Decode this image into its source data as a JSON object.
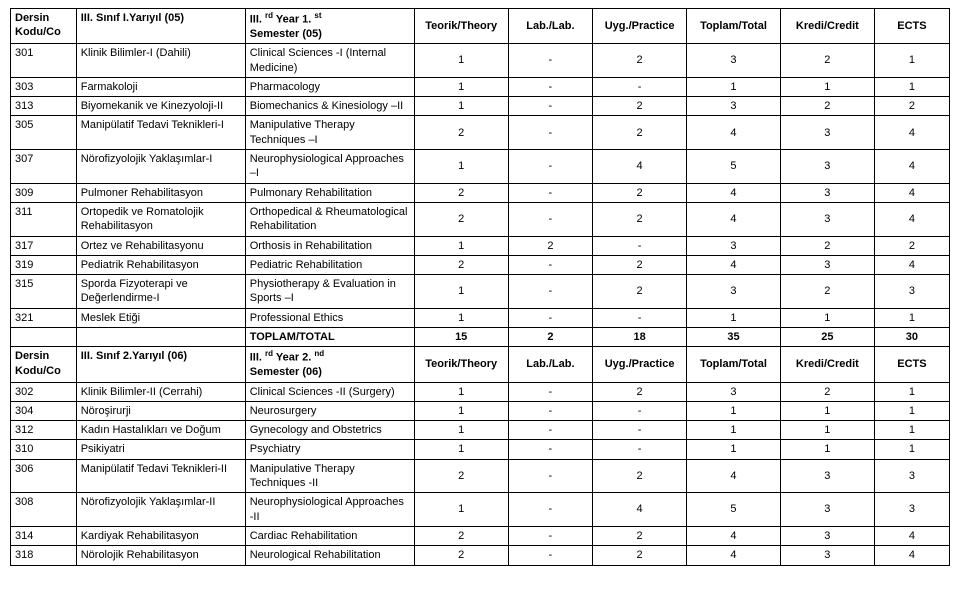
{
  "header1": {
    "col1a": "Dersin",
    "col1b": "Kodu/Co",
    "col2": "III. Sınıf I.Yarıyıl (05)",
    "col3a": "III. ",
    "col3sup": "rd",
    "col3b": " Year 1. ",
    "col3sup2": "st",
    "col3c": "Semester (05)",
    "col4": "Teorik/Theory",
    "col5": "Lab./Lab.",
    "col6": "Uyg./Practice",
    "col7": "Toplam/Total",
    "col8": "Kredi/Credit",
    "col9": "ECTS"
  },
  "rows1": [
    {
      "code": "301",
      "tr": "Klinik Bilimler-I (Dahili)",
      "en": "Clinical Sciences -I (Internal Medicine)",
      "t": "1",
      "l": "-",
      "p": "2",
      "tot": "3",
      "cr": "2",
      "e": "1"
    },
    {
      "code": "303",
      "tr": "Farmakoloji",
      "en": "Pharmacology",
      "t": "1",
      "l": "-",
      "p": "-",
      "tot": "1",
      "cr": "1",
      "e": "1"
    },
    {
      "code": "313",
      "tr": "Biyomekanik ve Kinezyoloji-II",
      "en": "Biomechanics & Kinesiology –II",
      "t": "1",
      "l": "-",
      "p": "2",
      "tot": "3",
      "cr": "2",
      "e": "2"
    },
    {
      "code": "305",
      "tr": "Manipülatif Tedavi Teknikleri-I",
      "en": "Manipulative Therapy Techniques –I",
      "t": "2",
      "l": "-",
      "p": "2",
      "tot": "4",
      "cr": "3",
      "e": "4"
    },
    {
      "code": "307",
      "tr": "Nörofizyolojik Yaklaşımlar-I",
      "en": "Neurophysiological Approaches –I",
      "t": "1",
      "l": "-",
      "p": "4",
      "tot": "5",
      "cr": "3",
      "e": "4"
    },
    {
      "code": "309",
      "tr": "Pulmoner Rehabilitasyon",
      "en": "Pulmonary Rehabilitation",
      "t": "2",
      "l": "-",
      "p": "2",
      "tot": "4",
      "cr": "3",
      "e": "4"
    },
    {
      "code": "311",
      "tr": "Ortopedik ve Romatolojik Rehabilitasyon",
      "en": "Orthopedical & Rheumatological Rehabilitation",
      "t": "2",
      "l": "-",
      "p": "2",
      "tot": "4",
      "cr": "3",
      "e": "4"
    },
    {
      "code": "317",
      "tr": "Ortez ve Rehabilitasyonu",
      "en": "Orthosis in Rehabilitation",
      "t": "1",
      "l": "2",
      "p": "-",
      "tot": "3",
      "cr": "2",
      "e": "2"
    },
    {
      "code": "319",
      "tr": "Pediatrik Rehabilitasyon",
      "en": "Pediatric Rehabilitation",
      "t": "2",
      "l": "-",
      "p": "2",
      "tot": "4",
      "cr": "3",
      "e": "4"
    },
    {
      "code": "315",
      "tr": "Sporda Fizyoterapi ve Değerlendirme-I",
      "en": "Physiotherapy & Evaluation in Sports –I",
      "t": "1",
      "l": "-",
      "p": "2",
      "tot": "3",
      "cr": "2",
      "e": "3"
    },
    {
      "code": "321",
      "tr": "Meslek Etiği",
      "en": "Professional Ethics",
      "t": "1",
      "l": "-",
      "p": "-",
      "tot": "1",
      "cr": "1",
      "e": "1"
    }
  ],
  "total1": {
    "label": "TOPLAM/TOTAL",
    "t": "15",
    "l": "2",
    "p": "18",
    "tot": "35",
    "cr": "25",
    "e": "30"
  },
  "header2": {
    "col1a": "Dersin",
    "col1b": "Kodu/Co",
    "col2": "III. Sınıf 2.Yarıyıl (06)",
    "col3a": "III. ",
    "col3sup": "rd",
    "col3b": " Year 2. ",
    "col3sup2": "nd",
    "col3c": "Semester (06)",
    "col4": "Teorik/Theory",
    "col5": "Lab./Lab.",
    "col6": "Uyg./Practice",
    "col7": "Toplam/Total",
    "col8": "Kredi/Credit",
    "col9": "ECTS"
  },
  "rows2": [
    {
      "code": "302",
      "tr": "Klinik Bilimler-II (Cerrahi)",
      "en": "Clinical Sciences -II (Surgery)",
      "t": "1",
      "l": "-",
      "p": "2",
      "tot": "3",
      "cr": "2",
      "e": "1"
    },
    {
      "code": "304",
      "tr": "Nöroşirurji",
      "en": "Neurosurgery",
      "t": "1",
      "l": "-",
      "p": "-",
      "tot": "1",
      "cr": "1",
      "e": "1"
    },
    {
      "code": "312",
      "tr": "Kadın Hastalıkları ve Doğum",
      "en": "Gynecology and Obstetrics",
      "t": "1",
      "l": "-",
      "p": "-",
      "tot": "1",
      "cr": "1",
      "e": "1"
    },
    {
      "code": "310",
      "tr": "Psikiyatri",
      "en": "Psychiatry",
      "t": "1",
      "l": "-",
      "p": "-",
      "tot": "1",
      "cr": "1",
      "e": "1"
    },
    {
      "code": "306",
      "tr": "Manipülatif Tedavi Teknikleri-II",
      "en": "Manipulative Therapy Techniques -II",
      "t": "2",
      "l": "-",
      "p": "2",
      "tot": "4",
      "cr": "3",
      "e": "3"
    },
    {
      "code": "308",
      "tr": "Nörofizyolojik Yaklaşımlar-II",
      "en": "Neurophysiological Approaches -II",
      "t": "1",
      "l": "-",
      "p": "4",
      "tot": "5",
      "cr": "3",
      "e": "3"
    },
    {
      "code": "314",
      "tr": "Kardiyak Rehabilitasyon",
      "en": "Cardiac Rehabilitation",
      "t": "2",
      "l": "-",
      "p": "2",
      "tot": "4",
      "cr": "3",
      "e": "4"
    },
    {
      "code": "318",
      "tr": "Nörolojik Rehabilitasyon",
      "en": "Neurological Rehabilitation",
      "t": "2",
      "l": "-",
      "p": "2",
      "tot": "4",
      "cr": "3",
      "e": "4"
    }
  ]
}
